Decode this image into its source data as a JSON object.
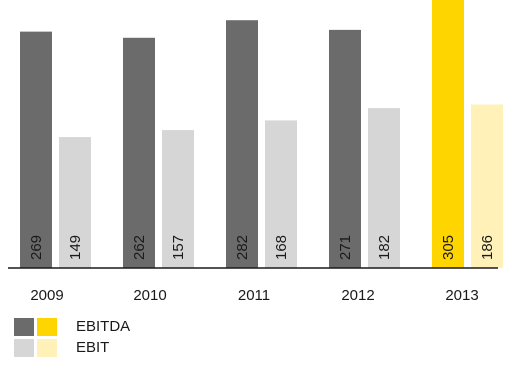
{
  "chart_data": {
    "type": "bar",
    "categories": [
      "2009",
      "2010",
      "2011",
      "2012",
      "2013"
    ],
    "series": [
      {
        "name": "EBITDA",
        "values": [
          269,
          262,
          282,
          271,
          305
        ]
      },
      {
        "name": "EBIT",
        "values": [
          149,
          157,
          168,
          182,
          186
        ]
      }
    ],
    "value_labels": [
      [
        "269",
        "262",
        "282",
        "271",
        "305"
      ],
      [
        "149",
        "157",
        "168",
        "182",
        "186"
      ]
    ],
    "title": "",
    "xlabel": "",
    "ylabel": "",
    "ylim": [
      0,
      305
    ],
    "grid": false,
    "legend_position": "bottom-left",
    "highlight_category": "2013"
  },
  "colors": {
    "ebitda": "#6b6b6b",
    "ebit": "#d6d6d6",
    "ebitda_highlight": "#ffd500",
    "ebit_highlight": "#fff1b8",
    "baseline": "#1a1a1a",
    "text": "#1a1a1a"
  },
  "legend": {
    "items": [
      {
        "label": "EBITDA"
      },
      {
        "label": "EBIT"
      }
    ]
  }
}
